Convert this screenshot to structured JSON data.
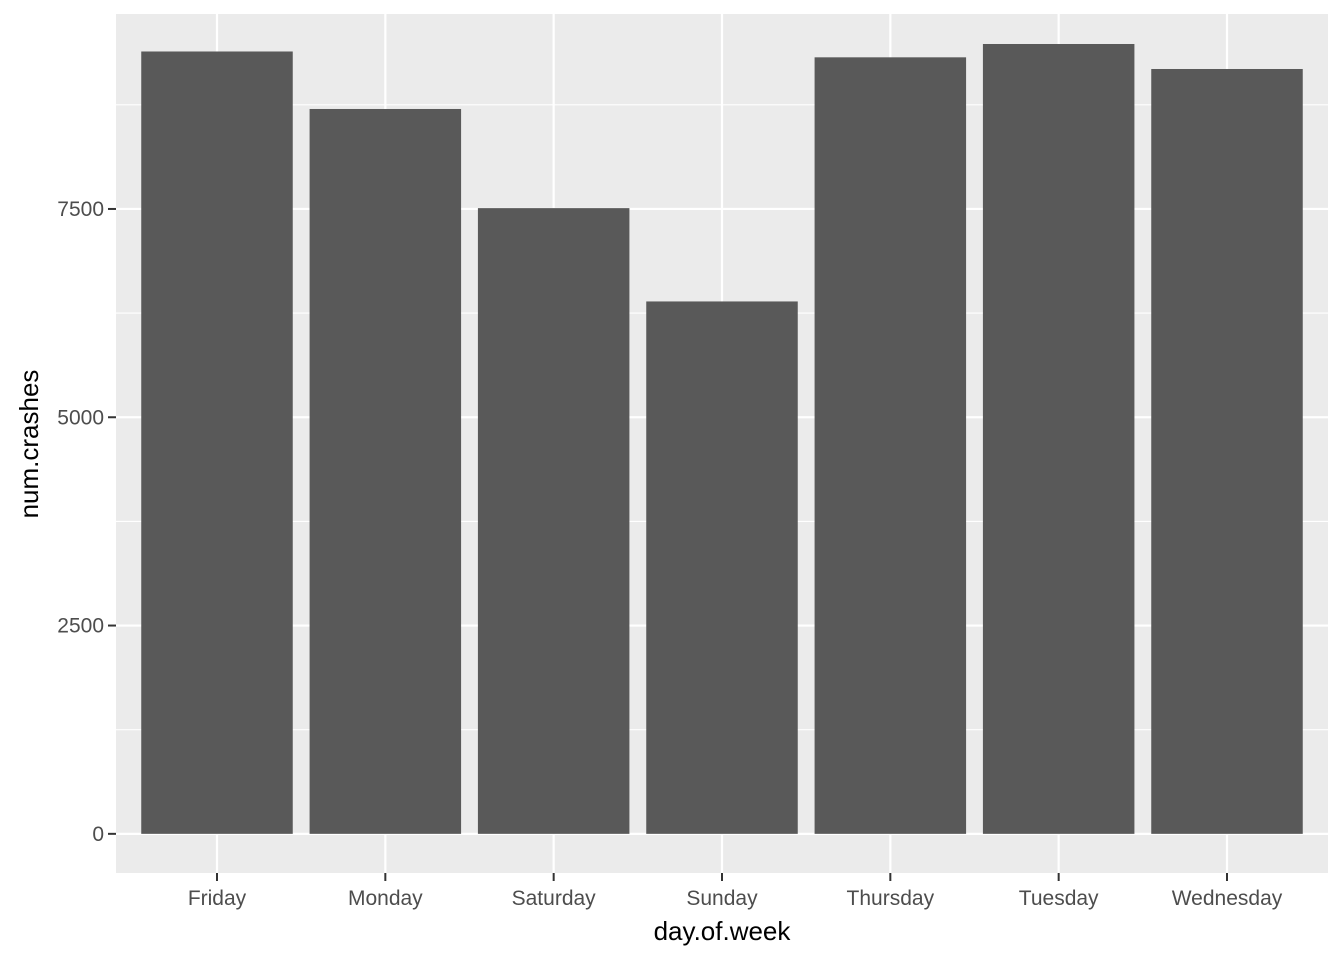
{
  "chart_data": {
    "type": "bar",
    "categories": [
      "Friday",
      "Monday",
      "Saturday",
      "Sunday",
      "Thursday",
      "Tuesday",
      "Wednesday"
    ],
    "values": [
      9390,
      8700,
      7510,
      6390,
      9320,
      9480,
      9180
    ],
    "xlabel": "day.of.week",
    "ylabel": "num.crashes",
    "ylim": [
      -470,
      9840
    ],
    "yticks": [
      0,
      2500,
      5000,
      7500
    ],
    "yticks_minor": [
      1250,
      3750,
      6250,
      8750
    ],
    "grid": true,
    "colors": {
      "panel": "#ebebeb",
      "grid": "#ffffff",
      "bar": "#595959",
      "tick": "#333333"
    }
  }
}
